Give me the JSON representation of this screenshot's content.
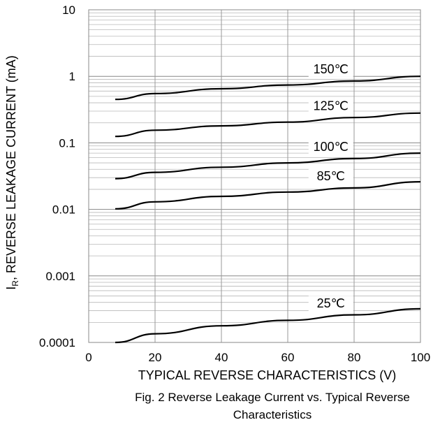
{
  "chart_data": {
    "type": "line",
    "title": "",
    "xlabel": "TYPICAL REVERSE CHARACTERISTICS (V)",
    "ylabel_main": "I",
    "ylabel_sub": "R",
    "ylabel_rest": ", REVERSE LEAKAGE CURRENT (mA)",
    "xlim": [
      0,
      100
    ],
    "ylim": [
      0.0001,
      10
    ],
    "yscale": "log",
    "grid": true,
    "x_ticks": [
      "0",
      "20",
      "40",
      "60",
      "80",
      "100"
    ],
    "y_ticks": [
      "10",
      "1",
      "0.1",
      "0.01",
      "0.001",
      "0.0001"
    ],
    "series": [
      {
        "name": "150℃",
        "x": [
          8,
          20,
          40,
          60,
          80,
          100
        ],
        "y": [
          0.45,
          0.55,
          0.65,
          0.74,
          0.85,
          1.0
        ]
      },
      {
        "name": "125℃",
        "x": [
          8,
          20,
          40,
          60,
          80,
          100
        ],
        "y": [
          0.125,
          0.155,
          0.18,
          0.205,
          0.24,
          0.28
        ]
      },
      {
        "name": "100℃",
        "x": [
          8,
          20,
          40,
          60,
          80,
          100
        ],
        "y": [
          0.029,
          0.036,
          0.043,
          0.05,
          0.058,
          0.07
        ]
      },
      {
        "name": "85℃",
        "x": [
          8,
          20,
          40,
          60,
          80,
          100
        ],
        "y": [
          0.0102,
          0.013,
          0.0157,
          0.0182,
          0.021,
          0.026
        ]
      },
      {
        "name": "25℃",
        "x": [
          8,
          20,
          40,
          60,
          80,
          100
        ],
        "y": [
          0.0001,
          0.000135,
          0.000178,
          0.000215,
          0.00026,
          0.00032
        ]
      }
    ],
    "label_x": [
      73,
      73,
      73,
      73,
      73
    ]
  },
  "caption": {
    "line1": "Fig. 2 Reverse Leakage Current vs. Typical Reverse",
    "line2": "Characteristics"
  }
}
